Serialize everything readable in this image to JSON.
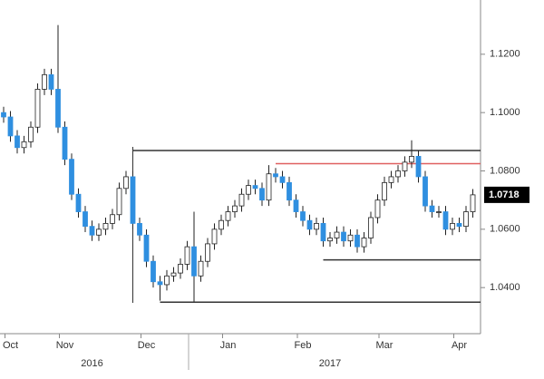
{
  "chart_data": {
    "type": "candlestick",
    "categories": [
      null,
      "Oct",
      null,
      null,
      null,
      null,
      null,
      null,
      null,
      "Nov",
      null,
      null,
      null,
      null,
      null,
      null,
      null,
      null,
      null,
      null,
      null,
      "Dec",
      null,
      null,
      null,
      null,
      null,
      null,
      null,
      null,
      null,
      null,
      null,
      "Jan",
      null,
      null,
      null,
      null,
      null,
      null,
      null,
      null,
      null,
      null,
      "Feb",
      null,
      null,
      null,
      null,
      null,
      null,
      null,
      null,
      null,
      null,
      null,
      "Mar",
      null,
      null,
      null,
      null,
      null,
      null,
      null,
      null,
      null,
      null,
      "Apr",
      null,
      null
    ],
    "x_groups": [
      null,
      null,
      null,
      null,
      null,
      null,
      null,
      null,
      null,
      null,
      null,
      null,
      null,
      "2016",
      null,
      null,
      null,
      null,
      null,
      null,
      null,
      null,
      null,
      null,
      null,
      null,
      null,
      null,
      null,
      null,
      null,
      null,
      null,
      null,
      null,
      null,
      null,
      null,
      null,
      null,
      null,
      null,
      null,
      null,
      null,
      null,
      null,
      null,
      "2017",
      null,
      null,
      null,
      null,
      null,
      null,
      null,
      null,
      null,
      null,
      null,
      null,
      null,
      null,
      null,
      null,
      null,
      null,
      null,
      null,
      null
    ],
    "open": [
      1.1,
      1.0985,
      1.092,
      1.088,
      1.09,
      1.095,
      1.108,
      1.113,
      1.108,
      1.095,
      1.084,
      1.072,
      1.066,
      1.061,
      1.058,
      1.06,
      1.062,
      1.065,
      1.074,
      1.078,
      1.062,
      1.058,
      1.049,
      1.042,
      1.041,
      1.044,
      1.045,
      1.048,
      1.054,
      1.044,
      1.049,
      1.055,
      1.06,
      1.063,
      1.066,
      1.068,
      1.072,
      1.075,
      1.074,
      1.07,
      1.079,
      1.078,
      1.076,
      1.07,
      1.066,
      1.063,
      1.06,
      1.062,
      1.056,
      1.057,
      1.059,
      1.056,
      1.058,
      1.054,
      1.057,
      1.064,
      1.07,
      1.076,
      1.078,
      1.08,
      1.083,
      1.085,
      1.078,
      1.068,
      1.066,
      1.066,
      1.06,
      1.062,
      1.061,
      1.066
    ],
    "high": [
      1.102,
      1.1005,
      1.094,
      1.092,
      1.097,
      1.11,
      1.115,
      1.115,
      1.13,
      1.097,
      1.086,
      1.074,
      1.068,
      1.063,
      1.062,
      1.064,
      1.067,
      1.076,
      1.08,
      1.08,
      1.064,
      1.06,
      1.051,
      1.044,
      1.046,
      1.047,
      1.05,
      1.056,
      1.066,
      1.051,
      1.057,
      1.062,
      1.065,
      1.068,
      1.07,
      1.074,
      1.077,
      1.077,
      1.076,
      1.082,
      1.081,
      1.08,
      1.078,
      1.072,
      1.068,
      1.065,
      1.064,
      1.064,
      1.059,
      1.061,
      1.061,
      1.06,
      1.06,
      1.059,
      1.066,
      1.072,
      1.078,
      1.08,
      1.082,
      1.085,
      1.0905,
      1.087,
      1.08,
      1.07,
      1.068,
      1.068,
      1.064,
      1.064,
      1.068,
      1.0738
    ],
    "low": [
      1.0965,
      1.09,
      1.086,
      1.086,
      1.088,
      1.093,
      1.106,
      1.106,
      1.093,
      1.082,
      1.07,
      1.064,
      1.059,
      1.056,
      1.056,
      1.058,
      1.06,
      1.063,
      1.072,
      1.06,
      1.056,
      1.047,
      1.04,
      1.0355,
      1.039,
      1.042,
      1.043,
      1.046,
      1.0352,
      1.042,
      1.047,
      1.053,
      1.058,
      1.061,
      1.064,
      1.066,
      1.07,
      1.072,
      1.068,
      1.068,
      1.076,
      1.074,
      1.068,
      1.064,
      1.061,
      1.058,
      1.058,
      1.054,
      1.054,
      1.055,
      1.054,
      1.054,
      1.052,
      1.052,
      1.055,
      1.062,
      1.068,
      1.074,
      1.076,
      1.078,
      1.081,
      1.076,
      1.066,
      1.064,
      1.064,
      1.058,
      1.058,
      1.059,
      1.059,
      1.064
    ],
    "close": [
      1.0985,
      1.092,
      1.088,
      1.09,
      1.095,
      1.108,
      1.113,
      1.108,
      1.095,
      1.084,
      1.072,
      1.066,
      1.061,
      1.058,
      1.06,
      1.062,
      1.065,
      1.074,
      1.078,
      1.062,
      1.058,
      1.049,
      1.042,
      1.041,
      1.044,
      1.045,
      1.048,
      1.054,
      1.044,
      1.049,
      1.055,
      1.06,
      1.063,
      1.066,
      1.068,
      1.072,
      1.075,
      1.074,
      1.07,
      1.079,
      1.078,
      1.076,
      1.07,
      1.066,
      1.063,
      1.06,
      1.062,
      1.056,
      1.057,
      1.059,
      1.056,
      1.058,
      1.054,
      1.057,
      1.064,
      1.07,
      1.076,
      1.078,
      1.08,
      1.083,
      1.085,
      1.078,
      1.068,
      1.066,
      1.066,
      1.06,
      1.062,
      1.061,
      1.066,
      1.0718
    ],
    "up_color": "#ffffff",
    "down_color": "#2f8fe0",
    "last_price_label": "1.0718",
    "levels": [
      {
        "value": 1.087,
        "color": "#333333",
        "start": 19
      },
      {
        "value": 1.0825,
        "color": "#e06060",
        "start": 40
      },
      {
        "value": 1.0495,
        "color": "#333333",
        "start": 47
      },
      {
        "value": 1.035,
        "color": "#333333",
        "start": 23
      }
    ],
    "ylim": [
      1.0242,
      1.1386
    ],
    "yticks": [
      {
        "value": 1.04,
        "label": "1.0400"
      },
      {
        "value": 1.06,
        "label": "1.0600"
      },
      {
        "value": 1.08,
        "label": "1.0800"
      },
      {
        "value": 1.1,
        "label": "1.1000"
      },
      {
        "value": 1.12,
        "label": "1.1200"
      }
    ]
  }
}
